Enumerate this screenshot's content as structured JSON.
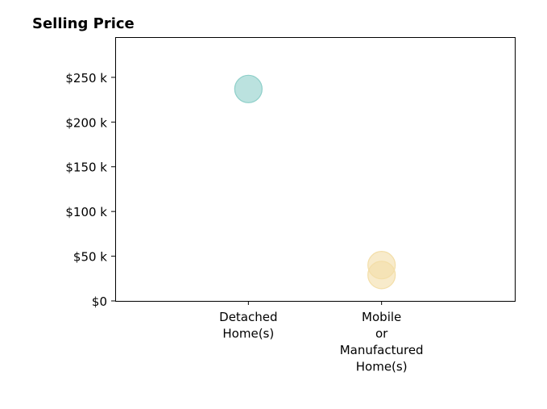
{
  "chart_data": {
    "type": "scatter",
    "title": "Selling Price",
    "xlabel": "",
    "ylabel": "",
    "categories": [
      [
        "Detached",
        "Home(s)"
      ],
      [
        "Mobile",
        "or",
        "Manufactured",
        "Home(s)"
      ]
    ],
    "x_range": [
      -1,
      2
    ],
    "ylim": [
      0,
      295000
    ],
    "y_ticks": [
      {
        "value": 0,
        "label": "$0"
      },
      {
        "value": 50000,
        "label": "$50 k"
      },
      {
        "value": 100000,
        "label": "$100 k"
      },
      {
        "value": 150000,
        "label": "$150 k"
      },
      {
        "value": 200000,
        "label": "$200 k"
      },
      {
        "value": 250000,
        "label": "$250 k"
      }
    ],
    "grid": false,
    "legend": "none",
    "series": [
      {
        "color": "#8ecfc9",
        "points": [
          {
            "category": 0,
            "y": 237000
          }
        ]
      },
      {
        "color": "#f3dea8",
        "points": [
          {
            "category": 1,
            "y": 40000
          },
          {
            "category": 1,
            "y": 29000
          }
        ]
      }
    ]
  }
}
